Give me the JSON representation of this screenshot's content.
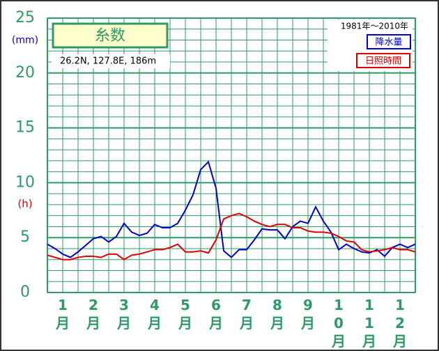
{
  "chart_data": {
    "type": "line",
    "title": "糸数",
    "subtitle": "26.2N, 127.8E, 186m",
    "period": "1981年～2010年",
    "y_label": "(mm)",
    "y2_label": "(h)",
    "x": [
      0.5,
      0.75,
      1,
      1.25,
      1.5,
      1.75,
      2,
      2.25,
      2.5,
      2.75,
      3,
      3.25,
      3.5,
      3.75,
      4,
      4.25,
      4.5,
      4.75,
      5,
      5.25,
      5.5,
      5.75,
      6,
      6.25,
      6.5,
      6.75,
      7,
      7.25,
      7.5,
      7.75,
      8,
      8.25,
      8.5,
      8.75,
      9,
      9.25,
      9.5,
      9.75,
      10,
      10.25,
      10.5,
      10.75,
      11,
      11.25,
      11.5,
      11.75,
      12,
      12.25,
      12.5
    ],
    "series": [
      {
        "name": "降水量",
        "color": "#0000cc",
        "values": [
          4.4,
          4.0,
          3.5,
          3.2,
          3.7,
          4.3,
          4.9,
          5.1,
          4.6,
          5.1,
          6.3,
          5.5,
          5.2,
          5.4,
          6.2,
          5.9,
          5.9,
          6.3,
          7.5,
          8.9,
          11.2,
          11.9,
          9.5,
          3.8,
          3.2,
          3.9,
          3.9,
          4.8,
          5.8,
          5.7,
          5.7,
          4.9,
          6.0,
          6.5,
          6.3,
          7.8,
          6.5,
          5.5,
          3.9,
          4.4,
          4.0,
          3.7,
          3.6,
          3.9,
          3.3,
          4.1,
          4.4,
          4.1,
          4.4
        ]
      },
      {
        "name": "日照時間",
        "color": "#dd0000",
        "values": [
          3.4,
          3.2,
          3.0,
          3.0,
          3.2,
          3.3,
          3.3,
          3.2,
          3.5,
          3.5,
          3.0,
          3.4,
          3.5,
          3.7,
          3.9,
          3.9,
          4.1,
          4.4,
          3.7,
          3.7,
          3.8,
          3.6,
          4.8,
          6.7,
          7.0,
          7.2,
          6.9,
          6.5,
          6.2,
          6.0,
          6.2,
          6.2,
          5.9,
          5.9,
          5.6,
          5.5,
          5.5,
          5.4,
          5.1,
          4.7,
          4.6,
          3.9,
          3.7,
          3.8,
          3.9,
          4.1,
          3.9,
          3.9,
          3.7
        ]
      }
    ],
    "xlim": [
      0.5,
      12.5
    ],
    "xticks": [
      {
        "value": 1,
        "label": "1月"
      },
      {
        "value": 2,
        "label": "2月"
      },
      {
        "value": 3,
        "label": "3月"
      },
      {
        "value": 4,
        "label": "4月"
      },
      {
        "value": 5,
        "label": "5月"
      },
      {
        "value": 6,
        "label": "6月"
      },
      {
        "value": 7,
        "label": "7月"
      },
      {
        "value": 8,
        "label": "8月"
      },
      {
        "value": 9,
        "label": "9月"
      },
      {
        "value": 10,
        "label": "10月"
      },
      {
        "value": 11,
        "label": "11月"
      },
      {
        "value": 12,
        "label": "12月"
      }
    ],
    "ylim": [
      0,
      25
    ],
    "yticks": [
      0,
      5,
      10,
      15,
      20,
      25
    ],
    "grid": true
  }
}
